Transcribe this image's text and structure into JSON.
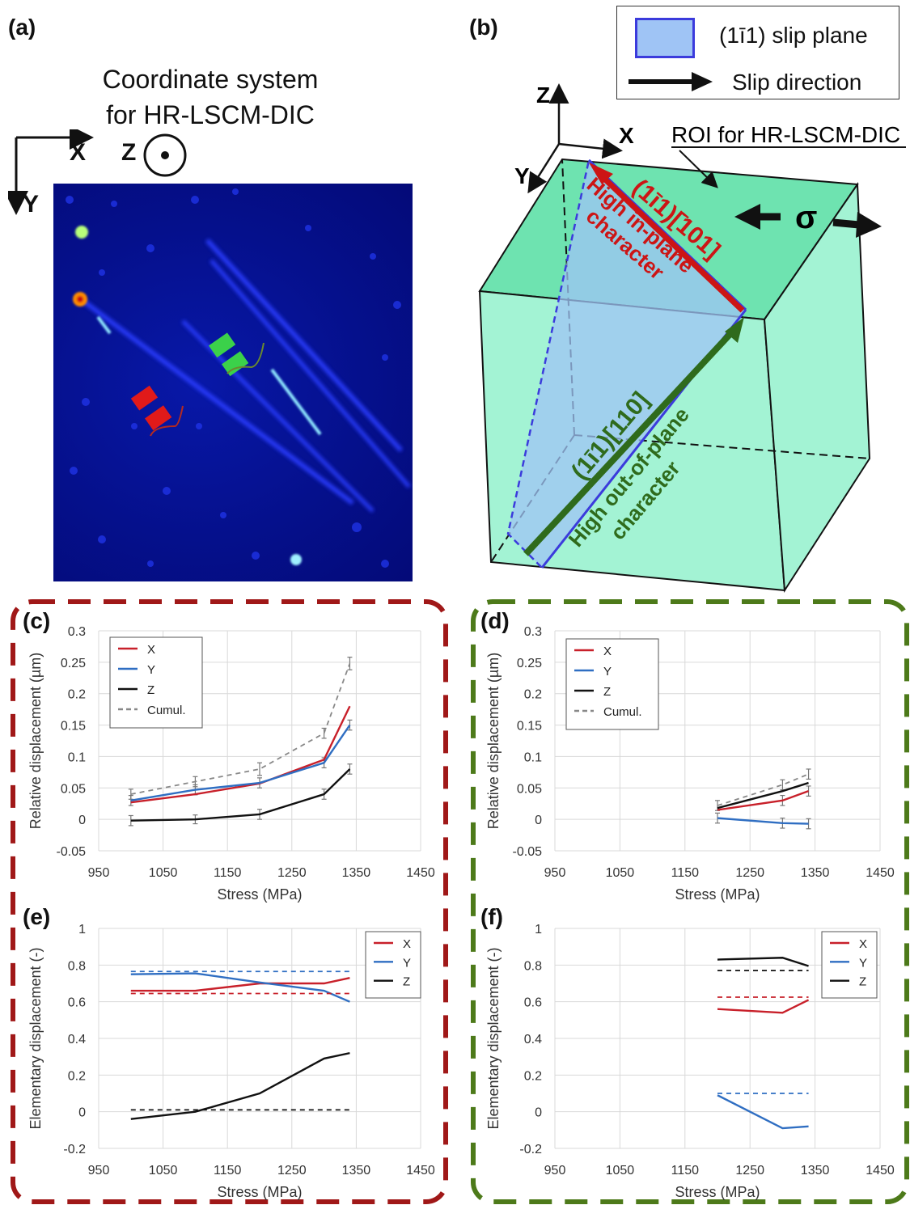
{
  "figure": {
    "panel_labels": {
      "a": "(a)",
      "b": "(b)",
      "c": "(c)",
      "d": "(d)",
      "e": "(e)",
      "f": "(f)"
    },
    "panel_a": {
      "title_line1": "Coordinate system",
      "title_line2": "for HR-LSCM-DIC",
      "axis_x": "X",
      "axis_y": "Y",
      "axis_z": "Z"
    },
    "panel_b": {
      "legend_plane": "(1ī1) slip plane",
      "legend_direction": "Slip direction",
      "axis_x": "X",
      "axis_y": "Y",
      "axis_z": "Z",
      "roi_label": "ROI for HR-LSCM-DIC",
      "sigma": "σ",
      "inplane_index": "(1ī1)[̄101]",
      "inplane_line1": "High in-plane",
      "inplane_line2": "character",
      "outplane_index": "(1ī1)[110]",
      "outplane_line1": "High out-of-plane",
      "outplane_line2": "character",
      "colors": {
        "plane_fill": "#9fc4f5",
        "plane_edge": "#3b3bdc",
        "in_plane": "#cc1515",
        "out_plane": "#2f6b1c",
        "cube_top": "#6ee3b0",
        "cube_side": "#a3f3d4"
      }
    },
    "frames": {
      "left_color": "#a01818",
      "right_color": "#4d7a1a"
    }
  },
  "chart_data": [
    {
      "id": "c",
      "type": "line",
      "xlabel": "Stress (MPa)",
      "ylabel": "Relative displacement (µm)",
      "xlim": [
        950,
        1450
      ],
      "ylim": [
        -0.05,
        0.3
      ],
      "xticks": [
        "950",
        "1050",
        "1150",
        "1250",
        "1350",
        "1450"
      ],
      "yticks": [
        "0.3",
        "0.25",
        "0.2",
        "0.15",
        "0.1",
        "0.05",
        "0",
        "-0.05"
      ],
      "grid": true,
      "legend_position": "top-left",
      "series": [
        {
          "name": "X",
          "color": "#c8202a",
          "dash": false,
          "x": [
            1000,
            1100,
            1200,
            1300,
            1340
          ],
          "y": [
            0.027,
            0.04,
            0.057,
            0.095,
            0.18
          ]
        },
        {
          "name": "Y",
          "color": "#2f6ec2",
          "dash": false,
          "x": [
            1000,
            1100,
            1200,
            1300,
            1340
          ],
          "y": [
            0.03,
            0.047,
            0.058,
            0.09,
            0.15
          ]
        },
        {
          "name": "Z",
          "color": "#111111",
          "dash": false,
          "x": [
            1000,
            1100,
            1200,
            1300,
            1340
          ],
          "y": [
            -0.002,
            0.0,
            0.008,
            0.04,
            0.08
          ]
        },
        {
          "name": "Cumul.",
          "color": "#888888",
          "dash": true,
          "x": [
            1000,
            1100,
            1200,
            1300,
            1340
          ],
          "y": [
            0.04,
            0.06,
            0.08,
            0.137,
            0.248
          ]
        }
      ],
      "errorbars": [
        {
          "x": 1000,
          "y": -0.002,
          "err": 0.008
        },
        {
          "x": 1100,
          "y": 0.0,
          "err": 0.007
        },
        {
          "x": 1200,
          "y": 0.008,
          "err": 0.008
        },
        {
          "x": 1300,
          "y": 0.04,
          "err": 0.008
        },
        {
          "x": 1340,
          "y": 0.08,
          "err": 0.008
        },
        {
          "x": 1000,
          "y": 0.03,
          "err": 0.008
        },
        {
          "x": 1100,
          "y": 0.047,
          "err": 0.008
        },
        {
          "x": 1200,
          "y": 0.058,
          "err": 0.008
        },
        {
          "x": 1300,
          "y": 0.09,
          "err": 0.008
        },
        {
          "x": 1340,
          "y": 0.15,
          "err": 0.008
        },
        {
          "x": 1000,
          "y": 0.04,
          "err": 0.008
        },
        {
          "x": 1100,
          "y": 0.06,
          "err": 0.008
        },
        {
          "x": 1200,
          "y": 0.08,
          "err": 0.01
        },
        {
          "x": 1300,
          "y": 0.137,
          "err": 0.008
        },
        {
          "x": 1340,
          "y": 0.248,
          "err": 0.01
        }
      ]
    },
    {
      "id": "d",
      "type": "line",
      "xlabel": "Stress (MPa)",
      "ylabel": "Relative displacement (µm)",
      "xlim": [
        950,
        1450
      ],
      "ylim": [
        -0.05,
        0.3
      ],
      "xticks": [
        "950",
        "1050",
        "1150",
        "1250",
        "1350",
        "1450"
      ],
      "yticks": [
        "0.3",
        "0.25",
        "0.2",
        "0.15",
        "0.1",
        "0.05",
        "0",
        "-0.05"
      ],
      "grid": true,
      "legend_position": "top-left",
      "series": [
        {
          "name": "X",
          "color": "#c8202a",
          "dash": false,
          "x": [
            1200,
            1300,
            1340
          ],
          "y": [
            0.015,
            0.03,
            0.045
          ]
        },
        {
          "name": "Y",
          "color": "#2f6ec2",
          "dash": false,
          "x": [
            1200,
            1300,
            1340
          ],
          "y": [
            0.002,
            -0.006,
            -0.007
          ]
        },
        {
          "name": "Z",
          "color": "#111111",
          "dash": false,
          "x": [
            1200,
            1300,
            1340
          ],
          "y": [
            0.018,
            0.045,
            0.058
          ]
        },
        {
          "name": "Cumul.",
          "color": "#888888",
          "dash": true,
          "x": [
            1200,
            1300,
            1340
          ],
          "y": [
            0.022,
            0.055,
            0.072
          ]
        }
      ],
      "errorbars": [
        {
          "x": 1200,
          "y": 0.002,
          "err": 0.008
        },
        {
          "x": 1300,
          "y": -0.006,
          "err": 0.008
        },
        {
          "x": 1340,
          "y": -0.007,
          "err": 0.008
        },
        {
          "x": 1200,
          "y": 0.022,
          "err": 0.008
        },
        {
          "x": 1300,
          "y": 0.055,
          "err": 0.008
        },
        {
          "x": 1340,
          "y": 0.072,
          "err": 0.008
        },
        {
          "x": 1300,
          "y": 0.03,
          "err": 0.008
        },
        {
          "x": 1340,
          "y": 0.045,
          "err": 0.008
        }
      ]
    },
    {
      "id": "e",
      "type": "line",
      "xlabel": "Stress (MPa)",
      "ylabel": "Elementary displacement (-)",
      "xlim": [
        950,
        1450
      ],
      "ylim": [
        -0.2,
        1.0
      ],
      "xticks": [
        "950",
        "1050",
        "1150",
        "1250",
        "1350",
        "1450"
      ],
      "yticks": [
        "1",
        "0.8",
        "0.6",
        "0.4",
        "0.2",
        "0",
        "-0.2"
      ],
      "grid": true,
      "legend_position": "top-right",
      "series": [
        {
          "name": "X",
          "color": "#c8202a",
          "dash": false,
          "x": [
            1000,
            1100,
            1200,
            1300,
            1340
          ],
          "y": [
            0.66,
            0.66,
            0.7,
            0.7,
            0.73
          ]
        },
        {
          "name": "Y",
          "color": "#2f6ec2",
          "dash": false,
          "x": [
            1000,
            1100,
            1200,
            1300,
            1340
          ],
          "y": [
            0.75,
            0.755,
            0.705,
            0.66,
            0.6
          ]
        },
        {
          "name": "Z",
          "color": "#111111",
          "dash": false,
          "x": [
            1000,
            1100,
            1200,
            1300,
            1340
          ],
          "y": [
            -0.04,
            0.0,
            0.1,
            0.29,
            0.32
          ]
        },
        {
          "name": "",
          "color": "#c8202a",
          "dash": true,
          "x": [
            1000,
            1340
          ],
          "y": [
            0.645,
            0.645
          ]
        },
        {
          "name": "",
          "color": "#2f6ec2",
          "dash": true,
          "x": [
            1000,
            1340
          ],
          "y": [
            0.765,
            0.765
          ]
        },
        {
          "name": "",
          "color": "#111111",
          "dash": true,
          "x": [
            1000,
            1340
          ],
          "y": [
            0.01,
            0.01
          ]
        }
      ],
      "errorbars": []
    },
    {
      "id": "f",
      "type": "line",
      "xlabel": "Stress (MPa)",
      "ylabel": "Elementary displacement (-)",
      "xlim": [
        950,
        1450
      ],
      "ylim": [
        -0.2,
        1.0
      ],
      "xticks": [
        "950",
        "1050",
        "1150",
        "1250",
        "1350",
        "1450"
      ],
      "yticks": [
        "1",
        "0.8",
        "0.6",
        "0.4",
        "0.2",
        "0",
        "-0.2"
      ],
      "grid": true,
      "legend_position": "top-right",
      "series": [
        {
          "name": "X",
          "color": "#c8202a",
          "dash": false,
          "x": [
            1200,
            1300,
            1340
          ],
          "y": [
            0.56,
            0.54,
            0.61
          ]
        },
        {
          "name": "Y",
          "color": "#2f6ec2",
          "dash": false,
          "x": [
            1200,
            1300,
            1340
          ],
          "y": [
            0.09,
            -0.09,
            -0.08
          ]
        },
        {
          "name": "Z",
          "color": "#111111",
          "dash": false,
          "x": [
            1200,
            1300,
            1340
          ],
          "y": [
            0.83,
            0.84,
            0.795
          ]
        },
        {
          "name": "",
          "color": "#c8202a",
          "dash": true,
          "x": [
            1200,
            1340
          ],
          "y": [
            0.625,
            0.625
          ]
        },
        {
          "name": "",
          "color": "#2f6ec2",
          "dash": true,
          "x": [
            1200,
            1340
          ],
          "y": [
            0.1,
            0.1
          ]
        },
        {
          "name": "",
          "color": "#111111",
          "dash": true,
          "x": [
            1200,
            1340
          ],
          "y": [
            0.77,
            0.77
          ]
        }
      ],
      "errorbars": []
    }
  ]
}
